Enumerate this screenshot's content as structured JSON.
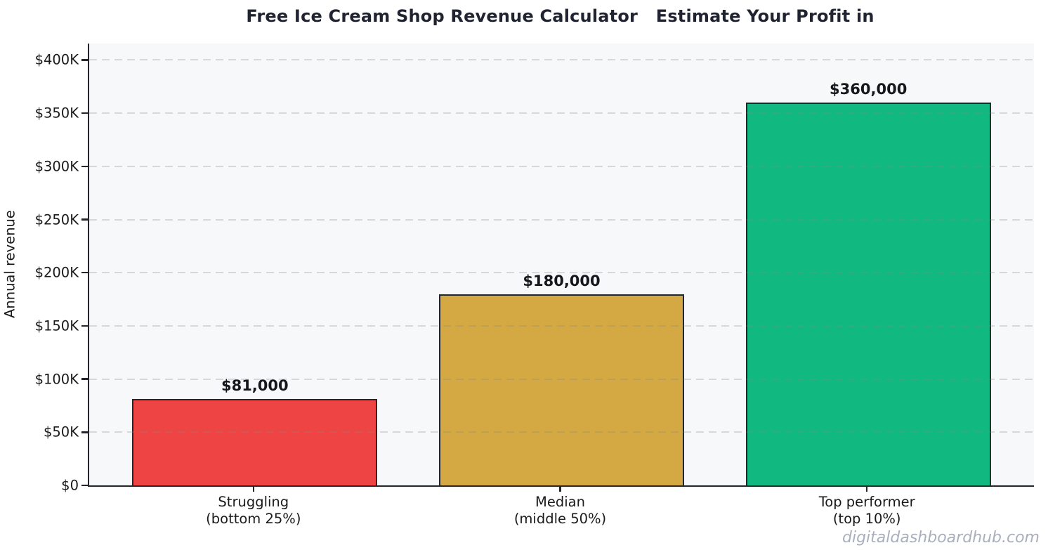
{
  "title": "Free Ice Cream Shop Revenue Calculator   Estimate Your Profit in",
  "watermark": "digitaldashboardhub.com",
  "chart_data": {
    "type": "bar",
    "title": "Free Ice Cream Shop Revenue Calculator   Estimate Your Profit in",
    "xlabel": "",
    "ylabel": "Annual revenue",
    "categories": [
      "Struggling\n(bottom 25%)",
      "Median\n(middle 50%)",
      "Top performer\n(top 10%)"
    ],
    "values": [
      81000,
      180000,
      360000
    ],
    "value_labels": [
      "$81,000",
      "$180,000",
      "$360,000"
    ],
    "bar_colors": [
      "#EF4444",
      "#D4A843",
      "#11B981"
    ],
    "bar_edge_color": "#24262B",
    "y_ticks": [
      {
        "value": 0,
        "label": "$0"
      },
      {
        "value": 50000,
        "label": "$50K"
      },
      {
        "value": 100000,
        "label": "$100K"
      },
      {
        "value": 150000,
        "label": "$150K"
      },
      {
        "value": 200000,
        "label": "$200K"
      },
      {
        "value": 250000,
        "label": "$250K"
      },
      {
        "value": 300000,
        "label": "$300K"
      },
      {
        "value": 350000,
        "label": "$350K"
      },
      {
        "value": 400000,
        "label": "$400K"
      }
    ],
    "ylim": [
      0,
      415500
    ],
    "grid": "horizontal-dashed",
    "legend": "none",
    "plot_background": "#F7F8FA"
  }
}
